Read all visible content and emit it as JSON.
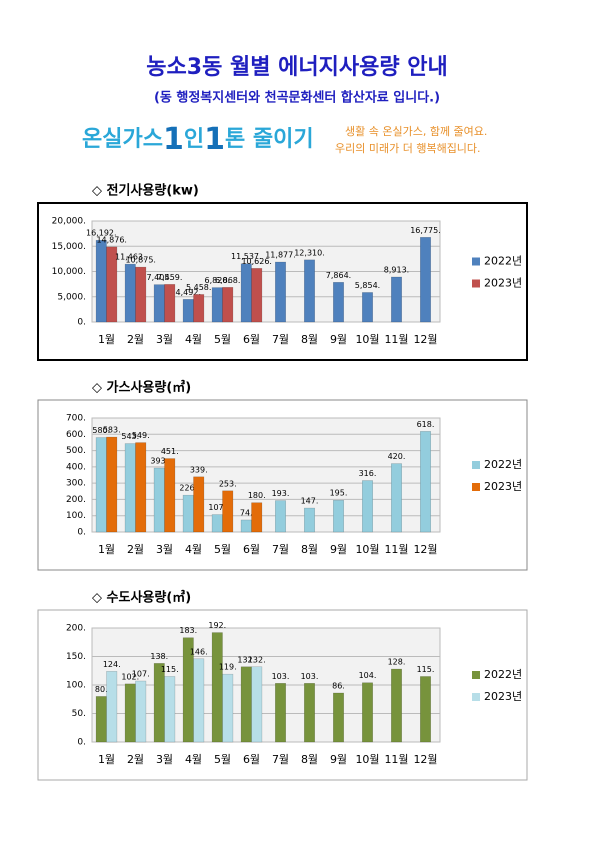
{
  "header": {
    "title": "농소3동 월별 에너지사용량 안내",
    "subtitle": "(동 행정복지센터와 천곡문화센터 합산자료 입니다.)"
  },
  "banner": {
    "logo": [
      "온실가스",
      "1",
      "인",
      "1",
      "톤 줄이기"
    ],
    "slogan": [
      "생활 속 온실가스, 함께 줄여요.",
      "우리의 미래가 더 행복해집니다."
    ]
  },
  "chart_data": [
    {
      "type": "bar",
      "title": "◇ 전기사용량(kw)",
      "categories": [
        "1월",
        "2월",
        "3월",
        "4월",
        "5월",
        "6월",
        "7월",
        "8월",
        "9월",
        "10월",
        "11월",
        "12월"
      ],
      "series": [
        {
          "name": "2022년",
          "color": "#4f81bd",
          "values": [
            16192,
            11463,
            7405,
            4492,
            6820,
            11537,
            11877,
            12310,
            7864,
            5854,
            8913,
            16775
          ],
          "value_labels": [
            "16,192.",
            "11,463.",
            "7,405.",
            "4,492.",
            "6,820.",
            "11,537.",
            "11,877.",
            "12,310.",
            "7,864.",
            "5,854.",
            "8,913.",
            "16,775."
          ]
        },
        {
          "name": "2023년",
          "color": "#c0504d",
          "values": [
            14876,
            10875,
            7459,
            5458,
            6868,
            10626,
            null,
            null,
            null,
            null,
            null,
            null
          ],
          "value_labels": [
            "14,876.",
            "10,875.",
            "7,459.",
            "5,458.",
            "6,868.",
            "10,626.",
            null,
            null,
            null,
            null,
            null,
            null
          ]
        }
      ],
      "ylim": [
        0,
        20000
      ],
      "yticks": [
        {
          "value": 0,
          "label": "0."
        },
        {
          "value": 5000,
          "label": "5,000."
        },
        {
          "value": 10000,
          "label": "10,000."
        },
        {
          "value": 15000,
          "label": "15,000."
        },
        {
          "value": 20000,
          "label": "20,000."
        }
      ],
      "grid": true
    },
    {
      "type": "bar",
      "title": "◇ 가스사용량(㎥)",
      "categories": [
        "1월",
        "2월",
        "3월",
        "4월",
        "5월",
        "6월",
        "7월",
        "8월",
        "9월",
        "10월",
        "11월",
        "12월"
      ],
      "series": [
        {
          "name": "2022년",
          "color": "#93cddd",
          "values": [
            580,
            543,
            393,
            226,
            107,
            74,
            193,
            147,
            195,
            316,
            420,
            618
          ],
          "value_labels": [
            "580.",
            "543.",
            "393.",
            "226.",
            "107.",
            "74.",
            "193.",
            "147.",
            "195.",
            "316.",
            "420.",
            "618."
          ]
        },
        {
          "name": "2023년",
          "color": "#e36c09",
          "values": [
            583,
            549,
            451,
            339,
            253,
            180,
            null,
            null,
            null,
            null,
            null,
            null
          ],
          "value_labels": [
            "583.",
            "549.",
            "451.",
            "339.",
            "253.",
            "180.",
            null,
            null,
            null,
            null,
            null,
            null
          ]
        }
      ],
      "ylim": [
        0,
        700
      ],
      "yticks": [
        {
          "value": 0,
          "label": "0."
        },
        {
          "value": 100,
          "label": "100."
        },
        {
          "value": 200,
          "label": "200."
        },
        {
          "value": 300,
          "label": "300."
        },
        {
          "value": 400,
          "label": "400."
        },
        {
          "value": 500,
          "label": "500."
        },
        {
          "value": 600,
          "label": "600."
        },
        {
          "value": 700,
          "label": "700."
        }
      ],
      "grid": true
    },
    {
      "type": "bar",
      "title": "◇ 수도사용량(㎥)",
      "categories": [
        "1월",
        "2월",
        "3월",
        "4월",
        "5월",
        "6월",
        "7월",
        "8월",
        "9월",
        "10월",
        "11월",
        "12월"
      ],
      "series": [
        {
          "name": "2022년",
          "color": "#77933c",
          "values": [
            80,
            102,
            138,
            183,
            192,
            132,
            103,
            103,
            86,
            104,
            128,
            115
          ],
          "value_labels": [
            "80.",
            "102.",
            "138.",
            "183.",
            "192.",
            "132.",
            "103.",
            "103.",
            "86.",
            "104.",
            "128.",
            "115."
          ]
        },
        {
          "name": "2023년",
          "color": "#b7dee8",
          "values": [
            124,
            107,
            115,
            146,
            119,
            132,
            null,
            null,
            null,
            null,
            null,
            null
          ],
          "value_labels": [
            "124.",
            "107.",
            "115.",
            "146.",
            "119.",
            "132.",
            null,
            null,
            null,
            null,
            null,
            null
          ]
        }
      ],
      "ylim": [
        0,
        200
      ],
      "yticks": [
        {
          "value": 0,
          "label": "0."
        },
        {
          "value": 50,
          "label": "50."
        },
        {
          "value": 100,
          "label": "100."
        },
        {
          "value": 150,
          "label": "150."
        },
        {
          "value": 200,
          "label": "200."
        }
      ],
      "grid": true
    }
  ]
}
